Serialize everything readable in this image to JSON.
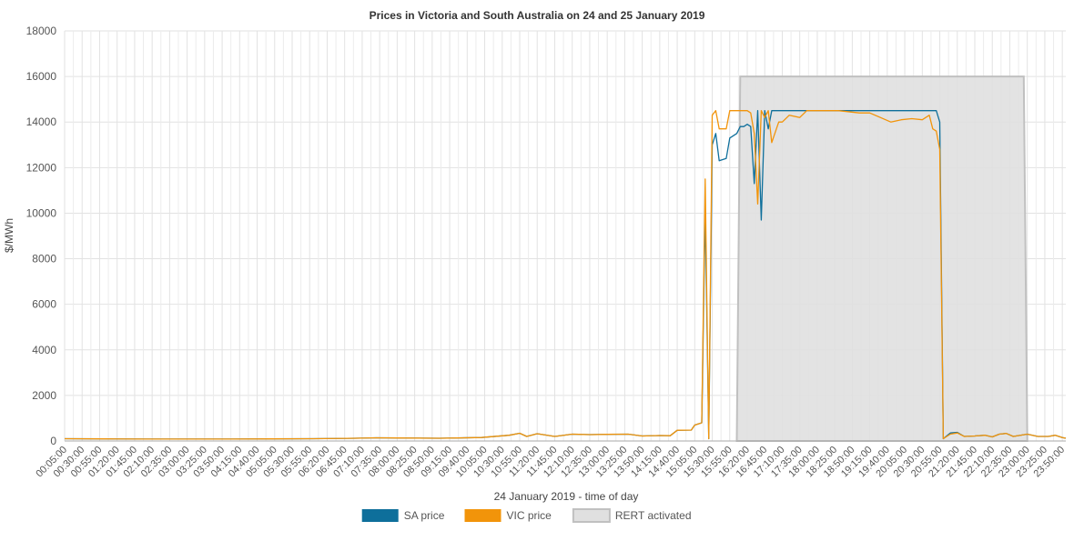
{
  "chart_data": {
    "type": "line",
    "title": "Prices in Victoria and South Australia on 24 and 25 January 2019",
    "xlabel": "24 January 2019 - time of day",
    "ylabel": "$/MWh",
    "ylim": [
      0,
      18000
    ],
    "yticks": [
      0,
      2000,
      4000,
      6000,
      8000,
      10000,
      12000,
      14000,
      16000,
      18000
    ],
    "ytick_labels": [
      "0",
      "2000",
      "4000",
      "6000",
      "8000",
      "10000",
      "12000",
      "14000",
      "16000",
      "18000"
    ],
    "grid": true,
    "legend_position": "bottom-center",
    "x_interval_minutes": 5,
    "x_start": "00:05:00",
    "x_end": "23:55:00",
    "x_tick_labels": [
      "00:05:00",
      "00:30:00",
      "00:55:00",
      "01:20:00",
      "01:45:00",
      "02:10:00",
      "02:35:00",
      "03:00:00",
      "03:25:00",
      "03:50:00",
      "04:15:00",
      "04:40:00",
      "05:05:00",
      "05:30:00",
      "05:55:00",
      "06:20:00",
      "06:45:00",
      "07:10:00",
      "07:35:00",
      "08:00:00",
      "08:25:00",
      "08:50:00",
      "09:15:00",
      "09:40:00",
      "10:05:00",
      "10:30:00",
      "10:55:00",
      "11:20:00",
      "11:45:00",
      "12:10:00",
      "12:35:00",
      "13:00:00",
      "13:25:00",
      "13:50:00",
      "14:15:00",
      "14:40:00",
      "15:05:00",
      "15:30:00",
      "15:55:00",
      "16:20:00",
      "16:45:00",
      "17:10:00",
      "17:35:00",
      "18:00:00",
      "18:25:00",
      "18:50:00",
      "19:15:00",
      "19:40:00",
      "20:05:00",
      "20:30:00",
      "20:55:00",
      "21:20:00",
      "21:45:00",
      "22:10:00",
      "22:35:00",
      "23:00:00",
      "23:25:00",
      "23:50:00"
    ],
    "series": [
      {
        "name": "SA price",
        "color": "#0e6f9b",
        "type": "line",
        "points": [
          [
            "00:05:00",
            100
          ],
          [
            "01:00:00",
            90
          ],
          [
            "02:00:00",
            85
          ],
          [
            "03:00:00",
            85
          ],
          [
            "04:00:00",
            85
          ],
          [
            "05:00:00",
            90
          ],
          [
            "06:00:00",
            100
          ],
          [
            "07:00:00",
            120
          ],
          [
            "07:30:00",
            140
          ],
          [
            "08:00:00",
            130
          ],
          [
            "09:00:00",
            120
          ],
          [
            "10:00:00",
            150
          ],
          [
            "10:40:00",
            250
          ],
          [
            "10:55:00",
            340
          ],
          [
            "11:05:00",
            200
          ],
          [
            "11:20:00",
            320
          ],
          [
            "11:45:00",
            200
          ],
          [
            "12:10:00",
            300
          ],
          [
            "12:35:00",
            280
          ],
          [
            "13:00:00",
            290
          ],
          [
            "13:30:00",
            300
          ],
          [
            "13:50:00",
            220
          ],
          [
            "14:15:00",
            240
          ],
          [
            "14:30:00",
            230
          ],
          [
            "14:40:00",
            470
          ],
          [
            "15:00:00",
            480
          ],
          [
            "15:05:00",
            700
          ],
          [
            "15:15:00",
            800
          ],
          [
            "15:20:00",
            10200
          ],
          [
            "15:25:00",
            100
          ],
          [
            "15:30:00",
            13000
          ],
          [
            "15:35:00",
            13500
          ],
          [
            "15:40:00",
            12300
          ],
          [
            "15:50:00",
            12400
          ],
          [
            "15:55:00",
            13300
          ],
          [
            "16:05:00",
            13500
          ],
          [
            "16:10:00",
            13800
          ],
          [
            "16:15:00",
            13800
          ],
          [
            "16:20:00",
            13900
          ],
          [
            "16:25:00",
            13800
          ],
          [
            "16:30:00",
            11300
          ],
          [
            "16:35:00",
            14500
          ],
          [
            "16:40:00",
            9700
          ],
          [
            "16:45:00",
            14500
          ],
          [
            "16:50:00",
            13700
          ],
          [
            "16:55:00",
            14500
          ],
          [
            "18:00:00",
            14500
          ],
          [
            "19:00:00",
            14500
          ],
          [
            "20:00:00",
            14500
          ],
          [
            "20:50:00",
            14500
          ],
          [
            "20:55:00",
            14000
          ],
          [
            "21:00:00",
            100
          ],
          [
            "21:10:00",
            350
          ],
          [
            "21:20:00",
            380
          ],
          [
            "21:30:00",
            200
          ],
          [
            "21:45:00",
            220
          ],
          [
            "22:00:00",
            250
          ],
          [
            "22:10:00",
            180
          ],
          [
            "22:20:00",
            300
          ],
          [
            "22:30:00",
            330
          ],
          [
            "22:40:00",
            200
          ],
          [
            "23:00:00",
            300
          ],
          [
            "23:15:00",
            200
          ],
          [
            "23:30:00",
            200
          ],
          [
            "23:40:00",
            250
          ],
          [
            "23:50:00",
            150
          ],
          [
            "23:55:00",
            120
          ]
        ]
      },
      {
        "name": "VIC price",
        "color": "#f2940a",
        "type": "line",
        "points": [
          [
            "00:05:00",
            100
          ],
          [
            "01:00:00",
            90
          ],
          [
            "02:00:00",
            85
          ],
          [
            "03:00:00",
            85
          ],
          [
            "04:00:00",
            85
          ],
          [
            "05:00:00",
            90
          ],
          [
            "06:00:00",
            100
          ],
          [
            "07:00:00",
            120
          ],
          [
            "07:30:00",
            140
          ],
          [
            "08:00:00",
            130
          ],
          [
            "09:00:00",
            120
          ],
          [
            "10:00:00",
            150
          ],
          [
            "10:40:00",
            250
          ],
          [
            "10:55:00",
            340
          ],
          [
            "11:05:00",
            200
          ],
          [
            "11:20:00",
            320
          ],
          [
            "11:45:00",
            200
          ],
          [
            "12:10:00",
            300
          ],
          [
            "12:35:00",
            280
          ],
          [
            "13:00:00",
            290
          ],
          [
            "13:30:00",
            300
          ],
          [
            "13:50:00",
            220
          ],
          [
            "14:15:00",
            240
          ],
          [
            "14:30:00",
            230
          ],
          [
            "14:40:00",
            470
          ],
          [
            "15:00:00",
            480
          ],
          [
            "15:05:00",
            700
          ],
          [
            "15:15:00",
            800
          ],
          [
            "15:20:00",
            11500
          ],
          [
            "15:25:00",
            100
          ],
          [
            "15:30:00",
            14300
          ],
          [
            "15:35:00",
            14500
          ],
          [
            "15:40:00",
            13700
          ],
          [
            "15:50:00",
            13700
          ],
          [
            "15:55:00",
            14500
          ],
          [
            "16:20:00",
            14500
          ],
          [
            "16:25:00",
            14400
          ],
          [
            "16:30:00",
            13500
          ],
          [
            "16:35:00",
            10400
          ],
          [
            "16:40:00",
            14500
          ],
          [
            "16:45:00",
            14200
          ],
          [
            "16:50:00",
            14500
          ],
          [
            "16:55:00",
            13100
          ],
          [
            "17:05:00",
            14000
          ],
          [
            "17:10:00",
            14000
          ],
          [
            "17:20:00",
            14300
          ],
          [
            "17:35:00",
            14200
          ],
          [
            "17:45:00",
            14500
          ],
          [
            "18:30:00",
            14500
          ],
          [
            "19:00:00",
            14400
          ],
          [
            "19:15:00",
            14400
          ],
          [
            "19:30:00",
            14200
          ],
          [
            "19:45:00",
            14000
          ],
          [
            "20:00:00",
            14100
          ],
          [
            "20:15:00",
            14150
          ],
          [
            "20:30:00",
            14100
          ],
          [
            "20:40:00",
            14300
          ],
          [
            "20:45:00",
            13700
          ],
          [
            "20:50:00",
            13600
          ],
          [
            "20:55:00",
            12800
          ],
          [
            "21:00:00",
            100
          ],
          [
            "21:10:00",
            300
          ],
          [
            "21:20:00",
            350
          ],
          [
            "21:30:00",
            200
          ],
          [
            "21:45:00",
            220
          ],
          [
            "22:00:00",
            250
          ],
          [
            "22:10:00",
            180
          ],
          [
            "22:20:00",
            300
          ],
          [
            "22:30:00",
            330
          ],
          [
            "22:40:00",
            200
          ],
          [
            "23:00:00",
            300
          ],
          [
            "23:15:00",
            200
          ],
          [
            "23:30:00",
            200
          ],
          [
            "23:40:00",
            250
          ],
          [
            "23:50:00",
            150
          ],
          [
            "23:55:00",
            120
          ]
        ]
      },
      {
        "name": "RERT activated",
        "color": "#e0e0e0",
        "stroke": "#c0c0c0",
        "type": "area",
        "points": [
          [
            "16:05:00",
            0
          ],
          [
            "16:10:00",
            16000
          ],
          [
            "22:55:00",
            16000
          ],
          [
            "23:00:00",
            0
          ]
        ]
      }
    ]
  }
}
